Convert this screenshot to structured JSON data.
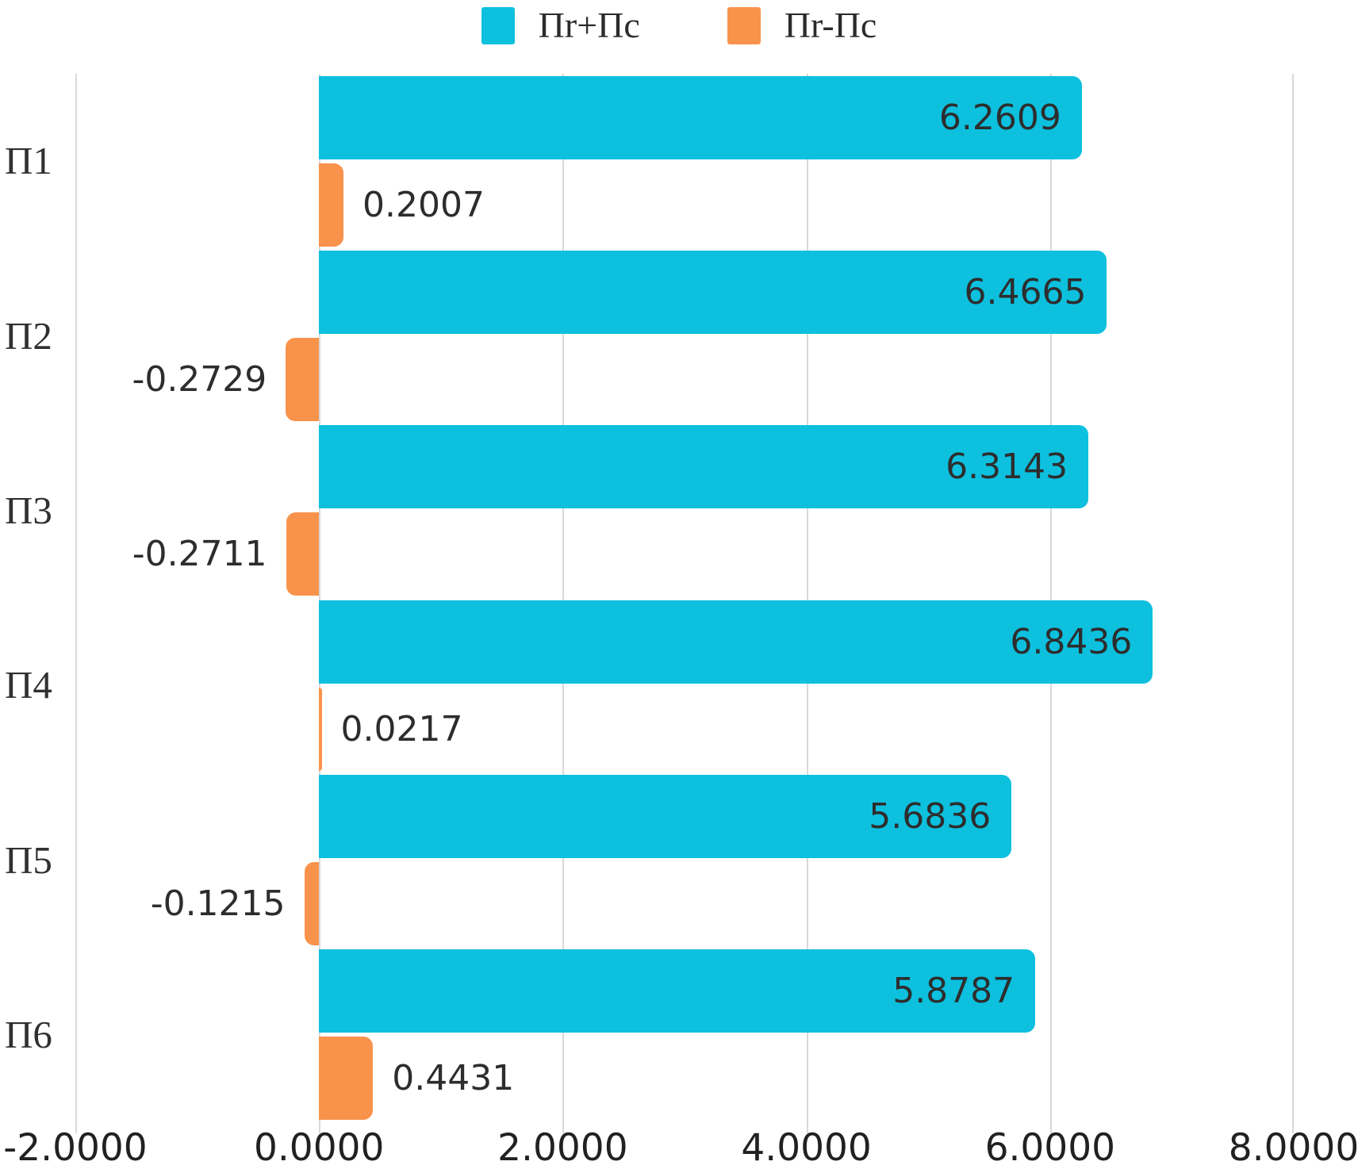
{
  "chart_data": {
    "type": "bar",
    "orientation": "horizontal",
    "categories": [
      "П1",
      "П2",
      "П3",
      "П4",
      "П5",
      "П6"
    ],
    "series": [
      {
        "name": "Пr+Пс",
        "color": "#0DC0DE",
        "values": [
          6.2609,
          6.4665,
          6.3143,
          6.8436,
          5.6836,
          5.8787
        ],
        "data_labels": [
          "6.2609",
          "6.4665",
          "6.3143",
          "6.8436",
          "5.6836",
          "5.8787"
        ],
        "label_placement": "inside-end"
      },
      {
        "name": "Пr-Пс",
        "color": "#F9934C",
        "values": [
          0.2007,
          -0.2729,
          -0.2711,
          0.0217,
          -0.1215,
          0.4431
        ],
        "data_labels": [
          "0.2007",
          "-0.2729",
          "-0.2711",
          "0.0217",
          "-0.1215",
          "0.4431"
        ],
        "label_placement": "outside-end"
      }
    ],
    "xlim": [
      -2,
      8
    ],
    "x_ticks": [
      {
        "value": -2,
        "label": "-2.0000"
      },
      {
        "value": 0,
        "label": "0.0000"
      },
      {
        "value": 2,
        "label": "2.0000"
      },
      {
        "value": 4,
        "label": "4.0000"
      },
      {
        "value": 6,
        "label": "6.0000"
      },
      {
        "value": 8,
        "label": "8.0000"
      }
    ],
    "grid": "vertical",
    "legend_position": "top-center"
  },
  "colors": {
    "grid": "#D9D9D9",
    "value_text": "#2D2D2D",
    "axis_text": "#212121"
  }
}
